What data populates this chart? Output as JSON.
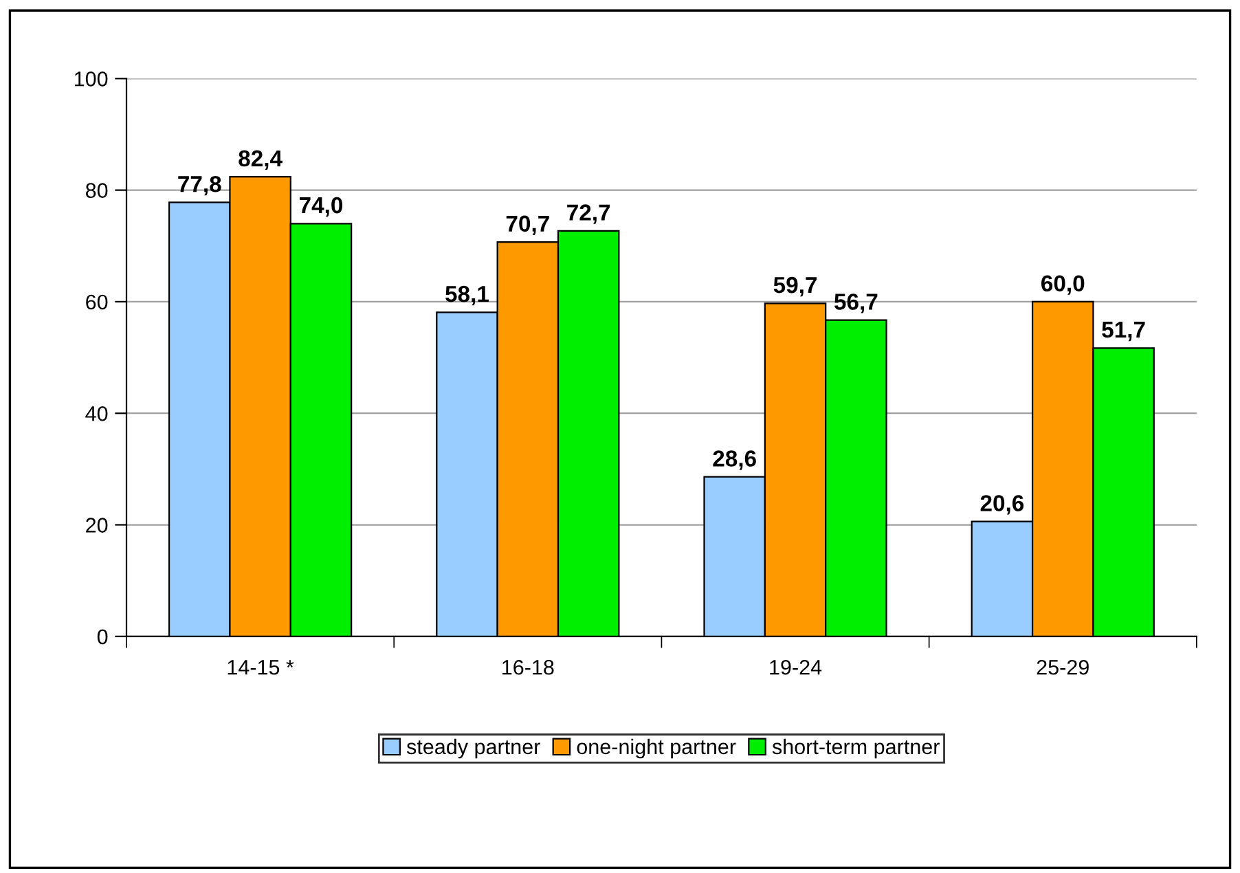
{
  "chart_data": {
    "type": "bar",
    "categories": [
      "14-15 *",
      "16-18",
      "19-24",
      "25-29"
    ],
    "series": [
      {
        "name": "steady partner",
        "color": "#99ccff",
        "values": [
          77.8,
          58.1,
          28.6,
          20.6
        ],
        "value_labels": [
          "77,8",
          "58,1",
          "28,6",
          "20,6"
        ]
      },
      {
        "name": "one-night partner",
        "color": "#ff9900",
        "values": [
          82.4,
          70.7,
          59.7,
          60.0
        ],
        "value_labels": [
          "82,4",
          "70,7",
          "59,7",
          "60,0"
        ]
      },
      {
        "name": "short-term partner",
        "color": "#00ee00",
        "values": [
          74.0,
          72.7,
          56.7,
          51.7
        ],
        "value_labels": [
          "74,0",
          "72,7",
          "56,7",
          "51,7"
        ]
      }
    ],
    "ylim": [
      0,
      100
    ],
    "yticks": [
      0,
      20,
      40,
      60,
      80,
      100
    ],
    "grid": "y",
    "legend": "bottom"
  }
}
